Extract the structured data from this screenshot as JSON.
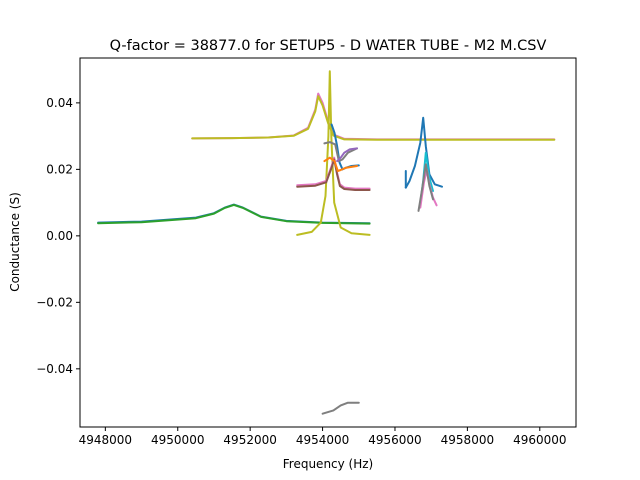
{
  "chart_data": {
    "type": "line",
    "title": "Q-factor = 38877.0 for SETUP5 - D WATER TUBE - M2 M.CSV",
    "xlabel": "Frequency (Hz)",
    "ylabel": "Conductance (S)",
    "xlim": [
      4947300,
      4961000
    ],
    "ylim": [
      -0.0575,
      0.0535
    ],
    "xticks": [
      4948000,
      4950000,
      4952000,
      4954000,
      4956000,
      4958000,
      4960000
    ],
    "xtick_labels": [
      "4948000",
      "4950000",
      "4952000",
      "4954000",
      "4956000",
      "4958000",
      "4960000"
    ],
    "yticks": [
      -0.04,
      -0.02,
      0.0,
      0.02,
      0.04
    ],
    "ytick_labels": [
      "−0.04",
      "−0.02",
      "0.00",
      "0.02",
      "0.04"
    ],
    "grid": false,
    "series": [
      {
        "color": "#e377c2",
        "x": [
          4950400,
          4951500,
          4952500,
          4953200,
          4953600,
          4953800,
          4953880,
          4954000,
          4954150,
          4954300,
          4954600,
          4955500,
          4956500,
          4957500,
          4959000,
          4960400
        ],
        "y": [
          0.0293,
          0.0294,
          0.0296,
          0.0302,
          0.0325,
          0.038,
          0.0428,
          0.04,
          0.0345,
          0.0305,
          0.0292,
          0.029,
          0.029,
          0.029,
          0.029,
          0.029
        ]
      },
      {
        "color": "#bcbd22",
        "x": [
          4950400,
          4951500,
          4952500,
          4953200,
          4953600,
          4953800,
          4953880,
          4954000,
          4954150,
          4954300,
          4954600,
          4955500,
          4956500,
          4957500,
          4959000,
          4960400
        ],
        "y": [
          0.0293,
          0.0294,
          0.0296,
          0.0301,
          0.0322,
          0.0375,
          0.042,
          0.0392,
          0.034,
          0.0302,
          0.029,
          0.0289,
          0.0289,
          0.0289,
          0.0289,
          0.0289
        ]
      },
      {
        "color": "#1f77b4",
        "x": [
          4947800,
          4949000,
          4950500,
          4951000,
          4951300,
          4951550,
          4951800,
          4952300,
          4953000,
          4954000,
          4955300
        ],
        "y": [
          0.004,
          0.0043,
          0.0055,
          0.0068,
          0.0085,
          0.0094,
          0.0085,
          0.0058,
          0.0045,
          0.004,
          0.0038
        ]
      },
      {
        "color": "#2ca02c",
        "x": [
          4947800,
          4949000,
          4950500,
          4951000,
          4951300,
          4951550,
          4951800,
          4952300,
          4953000,
          4954000,
          4955300
        ],
        "y": [
          0.0038,
          0.0041,
          0.0053,
          0.0067,
          0.0084,
          0.0093,
          0.0084,
          0.0057,
          0.0044,
          0.0039,
          0.0037
        ]
      },
      {
        "color": "#bcbd22",
        "x": [
          4953300,
          4953700,
          4953950,
          4954080,
          4954160,
          4954200,
          4954240,
          4954320,
          4954500,
          4954800,
          4955300
        ],
        "y": [
          0.0003,
          0.0012,
          0.004,
          0.012,
          0.03,
          0.0495,
          0.03,
          0.01,
          0.0025,
          0.0008,
          0.0003
        ]
      },
      {
        "color": "#1f77b4",
        "x": [
          4954250,
          4954330,
          4954400,
          4954470,
          4954550,
          4954650,
          4954800,
          4955000
        ],
        "y": [
          0.0335,
          0.031,
          0.027,
          0.022,
          0.02,
          0.0205,
          0.021,
          0.0212
        ]
      },
      {
        "color": "#e377c2",
        "x": [
          4953300,
          4953800,
          4954100,
          4954250,
          4954320,
          4954400,
          4954480,
          4954600,
          4954900,
          4955300
        ],
        "y": [
          0.0152,
          0.0155,
          0.0165,
          0.021,
          0.0235,
          0.019,
          0.0155,
          0.0145,
          0.0142,
          0.0142
        ]
      },
      {
        "color": "#8c564b",
        "x": [
          4953300,
          4953800,
          4954100,
          4954250,
          4954320,
          4954400,
          4954480,
          4954600,
          4954900,
          4955300
        ],
        "y": [
          0.0148,
          0.0151,
          0.0161,
          0.0205,
          0.023,
          0.0185,
          0.015,
          0.0141,
          0.0138,
          0.0138
        ]
      },
      {
        "color": "#7f7f7f",
        "x": [
          4954050,
          4954200,
          4954350,
          4954450,
          4954550,
          4954700,
          4954950
        ],
        "y": [
          0.0278,
          0.0282,
          0.0275,
          0.0225,
          0.023,
          0.025,
          0.0263
        ]
      },
      {
        "color": "#ff7f0e",
        "x": [
          4954050,
          4954200,
          4954330,
          4954420,
          4954500,
          4954650,
          4954950
        ],
        "y": [
          0.0225,
          0.0235,
          0.0225,
          0.0195,
          0.0198,
          0.0205,
          0.021
        ]
      },
      {
        "color": "#9467bd",
        "x": [
          4954400,
          4954500,
          4954600,
          4954750,
          4954950
        ],
        "y": [
          0.0225,
          0.0235,
          0.025,
          0.026,
          0.0263
        ]
      },
      {
        "color": "#1f77b4",
        "x": [
          4956300,
          4956400,
          4956550,
          4956700,
          4956780,
          4956850,
          4956950,
          4957100,
          4957300
        ],
        "y": [
          0.0145,
          0.0165,
          0.021,
          0.028,
          0.0355,
          0.027,
          0.0185,
          0.0155,
          0.0148
        ]
      },
      {
        "color": "#1f77b4",
        "x": [
          4956300,
          4956300
        ],
        "y": [
          0.0145,
          0.0195
        ]
      },
      {
        "color": "#17becf",
        "x": [
          4956700,
          4956780,
          4956850,
          4956950,
          4957050
        ],
        "y": [
          0.01,
          0.0165,
          0.025,
          0.0175,
          0.0135
        ]
      },
      {
        "color": "#e377c2",
        "x": [
          4956700,
          4956800,
          4956880,
          4956950,
          4957050,
          4957150
        ],
        "y": [
          0.0085,
          0.016,
          0.02,
          0.0155,
          0.0115,
          0.0092
        ]
      },
      {
        "color": "#7f7f7f",
        "x": [
          4956650,
          4956750,
          4956850,
          4956950,
          4957050
        ],
        "y": [
          0.0075,
          0.014,
          0.0215,
          0.015,
          0.011
        ]
      },
      {
        "color": "#7f7f7f",
        "x": [
          4954000,
          4954300,
          4954500,
          4954700,
          4955000
        ],
        "y": [
          -0.0535,
          -0.0525,
          -0.051,
          -0.0502,
          -0.0502
        ]
      }
    ]
  }
}
